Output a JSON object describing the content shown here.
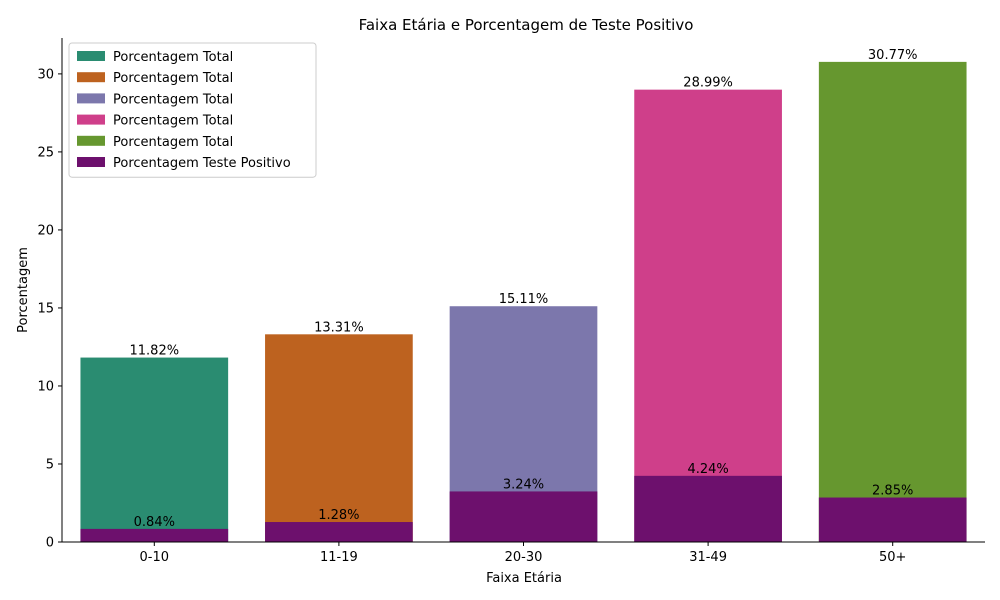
{
  "chart_data": {
    "type": "bar",
    "title": "Faixa Etária e Porcentagem de Teste Positivo",
    "xlabel": "Faixa Etária",
    "ylabel": "Porcentagem",
    "categories": [
      "0-10",
      "11-19",
      "20-30",
      "31-49",
      "50+"
    ],
    "ylim": [
      0,
      32.3
    ],
    "yticks": [
      0,
      5,
      10,
      15,
      20,
      25,
      30
    ],
    "series": [
      {
        "name": "Porcentagem Total",
        "values": [
          11.82,
          13.31,
          15.11,
          28.99,
          30.77
        ],
        "labels": [
          "11.82%",
          "13.31%",
          "15.11%",
          "28.99%",
          "30.77%"
        ],
        "colors": [
          "#2a8c71",
          "#bd621f",
          "#7c77ac",
          "#cf3f8a",
          "#66972f"
        ]
      },
      {
        "name": "Porcentagem Teste Positivo",
        "values": [
          0.84,
          1.28,
          3.24,
          4.24,
          2.85
        ],
        "labels": [
          "0.84%",
          "1.28%",
          "3.24%",
          "4.24%",
          "2.85%"
        ],
        "color": "#6d106d"
      }
    ],
    "legend": {
      "position": "top-left",
      "entries": [
        {
          "label": "Porcentagem Total",
          "color": "#2a8c71"
        },
        {
          "label": "Porcentagem Total",
          "color": "#bd621f"
        },
        {
          "label": "Porcentagem Total",
          "color": "#7c77ac"
        },
        {
          "label": "Porcentagem Total",
          "color": "#cf3f8a"
        },
        {
          "label": "Porcentagem Total",
          "color": "#66972f"
        },
        {
          "label": "Porcentagem Teste Positivo",
          "color": "#6d106d"
        }
      ]
    },
    "grid": false
  }
}
